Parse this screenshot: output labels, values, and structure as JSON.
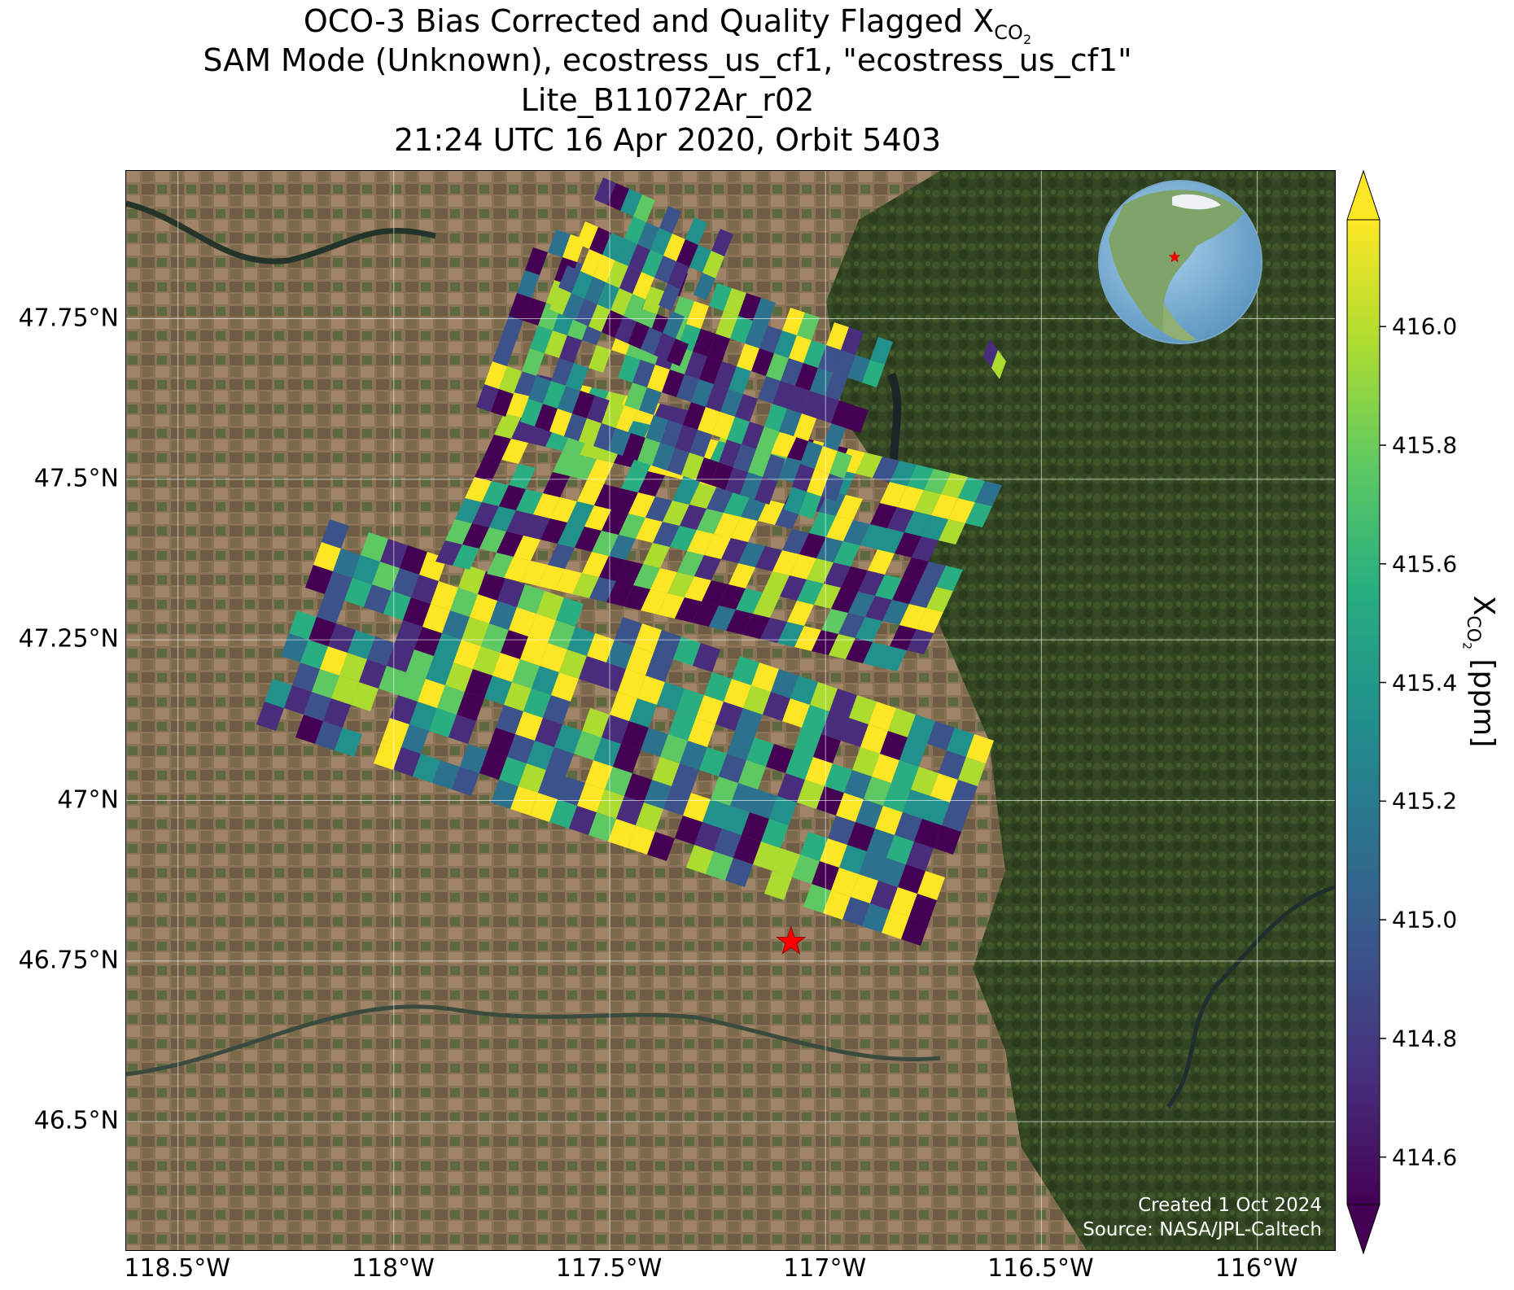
{
  "header": {
    "title_prefix": "OCO-3 Bias Corrected and Quality Flagged X",
    "title_subscript": "CO",
    "title_subscript2": "2",
    "line2": "SAM Mode (Unknown), ecostress_us_cf1, \"ecostress_us_cf1\"",
    "line3": "Lite_B11072Ar_r02",
    "line4": "21:24 UTC 16 Apr 2020, Orbit 5403"
  },
  "map": {
    "lon_range": [
      -118.62,
      -115.82
    ],
    "lat_range": [
      46.3,
      47.98
    ],
    "lat_ticks": [
      {
        "value": 47.75,
        "label": "47.75°N"
      },
      {
        "value": 47.5,
        "label": "47.5°N"
      },
      {
        "value": 47.25,
        "label": "47.25°N"
      },
      {
        "value": 47.0,
        "label": "47°N"
      },
      {
        "value": 46.75,
        "label": "46.75°N"
      },
      {
        "value": 46.5,
        "label": "46.5°N"
      }
    ],
    "lon_ticks": [
      {
        "value": -118.5,
        "label": "118.5°W"
      },
      {
        "value": -118.0,
        "label": "118°W"
      },
      {
        "value": -117.5,
        "label": "117.5°W"
      },
      {
        "value": -117.0,
        "label": "117°W"
      },
      {
        "value": -116.5,
        "label": "116.5°W"
      },
      {
        "value": -116.0,
        "label": "116°W"
      }
    ],
    "target": {
      "lon": -117.08,
      "lat": 46.78,
      "marker": "red-star",
      "color": "#ff0000"
    },
    "basemap": "satellite-imagery",
    "gridlines": true,
    "inset_globe": {
      "position": "top-right",
      "marker_color": "#ff0000"
    }
  },
  "colorbar": {
    "colormap": "viridis",
    "min": 414.52,
    "max": 416.18,
    "extend": "both",
    "ticks": [
      "414.6",
      "414.8",
      "415.0",
      "415.2",
      "415.4",
      "415.6",
      "415.8",
      "416.0"
    ],
    "label_prefix": "X",
    "label_subscript": "CO",
    "label_subscript2": "2",
    "label_suffix": " [ppm]"
  },
  "credits": {
    "created": "Created 1 Oct 2024",
    "source": "Source: NASA/JPL-Caltech"
  }
}
